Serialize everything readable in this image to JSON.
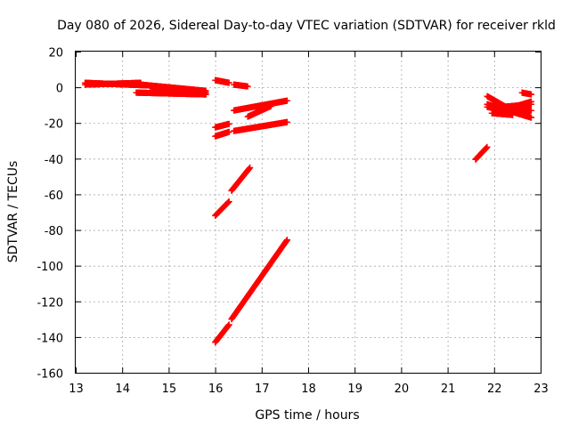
{
  "chart_data": {
    "type": "scatter",
    "title": "Day 080 of 2026, Sidereal Day-to-day VTEC variation (SDTVAR) for receiver rkld",
    "xlabel": "GPS time / hours",
    "ylabel": "SDTVAR / TECUs",
    "xlim": [
      13,
      23
    ],
    "ylim": [
      -160,
      20
    ],
    "xticks": [
      "13",
      "14",
      "15",
      "16",
      "17",
      "18",
      "19",
      "20",
      "21",
      "22",
      "23"
    ],
    "yticks": [
      "-160",
      "-140",
      "-120",
      "-100",
      "-80",
      "-60",
      "-40",
      "-20",
      "0",
      "20"
    ],
    "grid": true,
    "marker": "plus",
    "color": "#ff0000",
    "series": [
      {
        "x_start": 13.2,
        "x_end": 14.4,
        "y_start": 1.5,
        "y_end": 2.5
      },
      {
        "x_start": 13.2,
        "x_end": 14.6,
        "y_start": 2.5,
        "y_end": 1.0
      },
      {
        "x_start": 14.2,
        "x_end": 15.8,
        "y_start": 2.0,
        "y_end": -2.0
      },
      {
        "x_start": 14.3,
        "x_end": 15.8,
        "y_start": -3.0,
        "y_end": -4.0
      },
      {
        "x_start": 14.6,
        "x_end": 15.8,
        "y_start": 0.5,
        "y_end": -3.0
      },
      {
        "x_start": 15.5,
        "x_end": 15.8,
        "y_start": -2.0,
        "y_end": -4.0
      },
      {
        "x_start": 16.0,
        "x_end": 16.3,
        "y_start": 4.0,
        "y_end": 2.5
      },
      {
        "x_start": 16.4,
        "x_end": 16.7,
        "y_start": 1.5,
        "y_end": 0.5
      },
      {
        "x_start": 16.0,
        "x_end": 16.3,
        "y_start": -22.5,
        "y_end": -20.5
      },
      {
        "x_start": 16.0,
        "x_end": 16.3,
        "y_start": -27.5,
        "y_end": -25.0
      },
      {
        "x_start": 16.4,
        "x_end": 17.55,
        "y_start": -24.5,
        "y_end": -19.5
      },
      {
        "x_start": 16.4,
        "x_end": 17.55,
        "y_start": -13.0,
        "y_end": -7.5
      },
      {
        "x_start": 16.7,
        "x_end": 17.2,
        "y_start": -16.5,
        "y_end": -10.5
      },
      {
        "x_start": 16.0,
        "x_end": 16.3,
        "y_start": -72.0,
        "y_end": -64.0
      },
      {
        "x_start": 16.35,
        "x_end": 16.75,
        "y_start": -58.0,
        "y_end": -45.0
      },
      {
        "x_start": 16.0,
        "x_end": 16.3,
        "y_start": -143.0,
        "y_end": -133.0
      },
      {
        "x_start": 16.35,
        "x_end": 17.55,
        "y_start": -130.0,
        "y_end": -85.5
      },
      {
        "x_start": 21.6,
        "x_end": 21.85,
        "y_start": -40.5,
        "y_end": -33.5
      },
      {
        "x_start": 21.85,
        "x_end": 22.35,
        "y_start": -5.0,
        "y_end": -12.5
      },
      {
        "x_start": 21.85,
        "x_end": 22.35,
        "y_start": -11.0,
        "y_end": -13.5
      },
      {
        "x_start": 21.85,
        "x_end": 22.8,
        "y_start": -9.5,
        "y_end": -17.0
      },
      {
        "x_start": 21.95,
        "x_end": 22.4,
        "y_start": -14.5,
        "y_end": -15.5
      },
      {
        "x_start": 22.2,
        "x_end": 22.8,
        "y_start": -11.0,
        "y_end": -9.5
      },
      {
        "x_start": 22.3,
        "x_end": 22.8,
        "y_start": -14.0,
        "y_end": -13.0
      },
      {
        "x_start": 22.3,
        "x_end": 22.8,
        "y_start": -12.0,
        "y_end": -8.0
      },
      {
        "x_start": 22.6,
        "x_end": 22.8,
        "y_start": -3.0,
        "y_end": -4.0
      }
    ]
  }
}
